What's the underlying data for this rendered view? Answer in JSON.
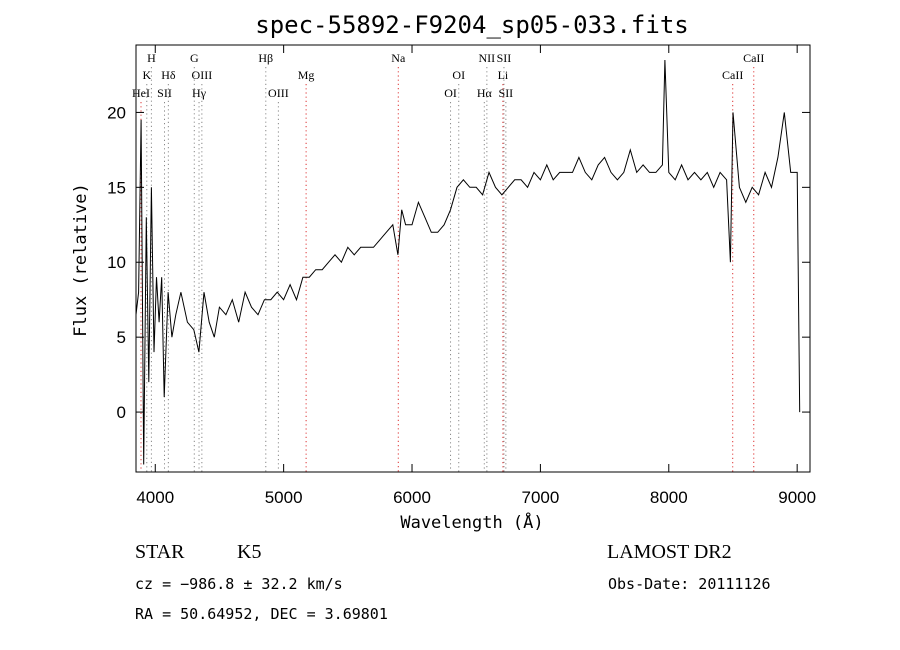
{
  "chart_data": {
    "type": "line",
    "title": "spec-55892-F9204_sp05-033.fits",
    "xlabel": "Wavelength (Å)",
    "ylabel": "Flux (relative)",
    "xlim": [
      3850,
      9100
    ],
    "ylim": [
      -4,
      24.5
    ],
    "xticks": [
      4000,
      5000,
      6000,
      7000,
      8000,
      9000
    ],
    "yticks": [
      0,
      5,
      10,
      15,
      20
    ],
    "grid": false,
    "series": [
      {
        "x": [
          3850,
          3870,
          3890,
          3910,
          3930,
          3950,
          3970,
          3990,
          4010,
          4030,
          4050,
          4070,
          4100,
          4130,
          4160,
          4200,
          4250,
          4300,
          4340,
          4380,
          4420,
          4460,
          4500,
          4550,
          4600,
          4650,
          4700,
          4750,
          4800,
          4850,
          4900,
          4950,
          5000,
          5050,
          5100,
          5150,
          5200,
          5250,
          5300,
          5350,
          5400,
          5450,
          5500,
          5550,
          5600,
          5650,
          5700,
          5750,
          5800,
          5850,
          5890,
          5920,
          5950,
          6000,
          6050,
          6100,
          6150,
          6200,
          6250,
          6300,
          6350,
          6400,
          6450,
          6500,
          6550,
          6600,
          6650,
          6700,
          6750,
          6800,
          6850,
          6900,
          6950,
          7000,
          7050,
          7100,
          7150,
          7200,
          7250,
          7300,
          7350,
          7400,
          7450,
          7500,
          7550,
          7600,
          7650,
          7700,
          7750,
          7800,
          7850,
          7900,
          7950,
          7970,
          8000,
          8050,
          8100,
          8150,
          8200,
          8250,
          8300,
          8350,
          8400,
          8450,
          8480,
          8500,
          8550,
          8600,
          8650,
          8700,
          8750,
          8800,
          8850,
          8900,
          8950,
          9000,
          9020
        ],
        "values": [
          6.5,
          8,
          19.5,
          -3.5,
          13,
          2,
          15,
          4,
          9,
          6,
          9,
          1,
          8,
          5,
          6.5,
          8,
          6,
          5.5,
          4,
          8,
          6,
          5,
          7,
          6.5,
          7.5,
          6,
          8,
          7,
          6.5,
          7.5,
          7.5,
          8,
          7.5,
          8.5,
          7.5,
          9,
          9,
          9.5,
          9.5,
          10,
          10.5,
          10,
          11,
          10.5,
          11,
          11,
          11,
          11.5,
          12,
          12.5,
          10.5,
          13.5,
          12.5,
          12.5,
          14,
          13,
          12,
          12,
          12.5,
          13.5,
          15,
          15.5,
          15,
          15,
          14.5,
          16,
          15,
          14.5,
          15,
          15.5,
          15.5,
          15,
          16,
          15.5,
          16.5,
          15.5,
          16,
          16,
          16,
          17,
          16,
          15.5,
          16.5,
          17,
          16,
          15.5,
          16,
          17.5,
          16,
          16.5,
          16,
          16,
          16.5,
          23.5,
          16,
          15.5,
          16.5,
          15.5,
          16,
          15.5,
          16,
          15,
          16,
          15.5,
          10,
          20,
          15,
          14,
          15,
          14.5,
          16,
          15,
          17,
          20,
          16,
          16,
          0
        ]
      }
    ],
    "line_markers": [
      {
        "label": "H",
        "x": 3970,
        "row": 0,
        "color": "gray"
      },
      {
        "label": "K",
        "x": 3934,
        "row": 1,
        "color": "gray"
      },
      {
        "label": "HeI",
        "x": 3889,
        "row": 2,
        "color": "red"
      },
      {
        "label": "Hδ",
        "x": 4102,
        "row": 1,
        "color": "gray"
      },
      {
        "label": "SII",
        "x": 4072,
        "row": 2,
        "color": "gray"
      },
      {
        "label": "G",
        "x": 4304,
        "row": 0,
        "color": "gray"
      },
      {
        "label": "OIII",
        "x": 4363,
        "row": 1,
        "color": "gray"
      },
      {
        "label": "Hγ",
        "x": 4341,
        "row": 2,
        "color": "gray"
      },
      {
        "label": "Hβ",
        "x": 4861,
        "row": 0,
        "color": "gray"
      },
      {
        "label": "OIII",
        "x": 4959,
        "row": 2,
        "color": "gray"
      },
      {
        "label": "Mg",
        "x": 5175,
        "row": 1,
        "color": "red"
      },
      {
        "label": "Na",
        "x": 5893,
        "row": 0,
        "color": "red"
      },
      {
        "label": "OI",
        "x": 6364,
        "row": 1,
        "color": "gray"
      },
      {
        "label": "OI",
        "x": 6300,
        "row": 2,
        "color": "gray"
      },
      {
        "label": "NII",
        "x": 6583,
        "row": 0,
        "color": "gray"
      },
      {
        "label": "Hα",
        "x": 6563,
        "row": 2,
        "color": "gray"
      },
      {
        "label": "SII",
        "x": 6716,
        "row": 0,
        "color": "gray"
      },
      {
        "label": "Li",
        "x": 6708,
        "row": 1,
        "color": "red"
      },
      {
        "label": "SII",
        "x": 6731,
        "row": 2,
        "color": "gray"
      },
      {
        "label": "CaII",
        "x": 8662,
        "row": 0,
        "color": "red"
      },
      {
        "label": "CaII",
        "x": 8498,
        "row": 1,
        "color": "red"
      }
    ]
  },
  "info": {
    "class": "STAR",
    "subclass": "K5",
    "survey": "LAMOST DR2",
    "cz": "cz = −986.8 ± 32.2 km/s",
    "obs_date": "Obs-Date: 20111126",
    "coords": "RA =  50.64952, DEC =   3.69801"
  }
}
